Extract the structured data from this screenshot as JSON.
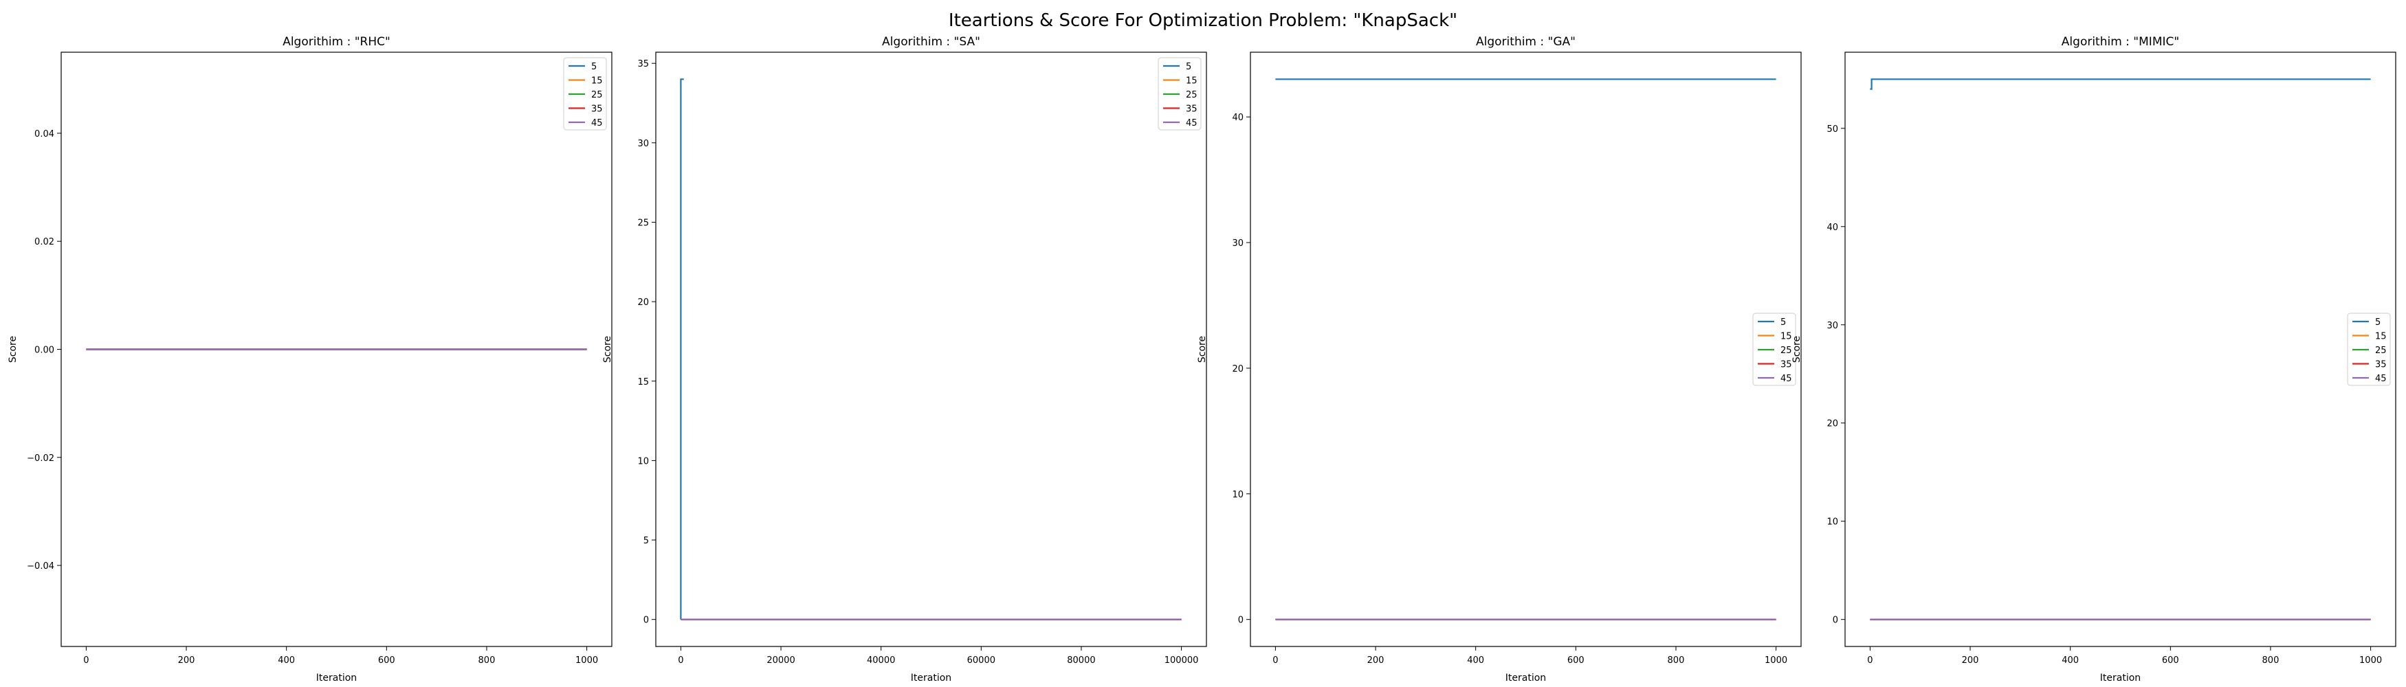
{
  "figure": {
    "title": "Iteartions & Score For Optimization Problem: \"KnapSack\""
  },
  "chart_data": [
    {
      "type": "line",
      "title": "Algorithim : \"RHC\"",
      "xlabel": "Iteration",
      "ylabel": "Score",
      "xlim": [
        -50,
        1050
      ],
      "ylim": [
        -0.055,
        0.055
      ],
      "xticks": [
        0,
        200,
        400,
        600,
        800,
        1000
      ],
      "xtick_labels": [
        "0",
        "200",
        "400",
        "600",
        "800",
        "1000"
      ],
      "yticks": [
        -0.04,
        -0.02,
        0.0,
        0.02,
        0.04
      ],
      "ytick_labels": [
        "−0.04",
        "−0.02",
        "0.00",
        "0.02",
        "0.04"
      ],
      "legend_position": "upper right",
      "grid": false,
      "series": [
        {
          "name": "5",
          "color": "#1f77b4",
          "points": [
            [
              0,
              0
            ],
            [
              1000,
              0
            ]
          ]
        },
        {
          "name": "15",
          "color": "#ff7f0e",
          "points": [
            [
              0,
              0
            ],
            [
              1000,
              0
            ]
          ]
        },
        {
          "name": "25",
          "color": "#2ca02c",
          "points": [
            [
              0,
              0
            ],
            [
              1000,
              0
            ]
          ]
        },
        {
          "name": "35",
          "color": "#d62728",
          "points": [
            [
              0,
              0
            ],
            [
              1000,
              0
            ]
          ]
        },
        {
          "name": "45",
          "color": "#9467bd",
          "points": [
            [
              0,
              0
            ],
            [
              1000,
              0
            ]
          ]
        }
      ]
    },
    {
      "type": "line",
      "title": "Algorithim : \"SA\"",
      "xlabel": "Iteration",
      "ylabel": "Score",
      "xlim": [
        -5000,
        105000
      ],
      "ylim": [
        -1.7,
        35.7
      ],
      "xticks": [
        0,
        20000,
        40000,
        60000,
        80000,
        100000
      ],
      "xtick_labels": [
        "0",
        "20000",
        "40000",
        "60000",
        "80000",
        "100000"
      ],
      "yticks": [
        0,
        5,
        10,
        15,
        20,
        25,
        30,
        35
      ],
      "ytick_labels": [
        "0",
        "5",
        "10",
        "15",
        "20",
        "25",
        "30",
        "35"
      ],
      "legend_position": "upper right",
      "grid": false,
      "series": [
        {
          "name": "5",
          "color": "#1f77b4",
          "points": [
            [
              0,
              0
            ],
            [
              0,
              34
            ],
            [
              600,
              34
            ]
          ]
        },
        {
          "name": "15",
          "color": "#ff7f0e",
          "points": [
            [
              0,
              0
            ],
            [
              100000,
              0
            ]
          ]
        },
        {
          "name": "25",
          "color": "#2ca02c",
          "points": [
            [
              0,
              0
            ],
            [
              100000,
              0
            ]
          ]
        },
        {
          "name": "35",
          "color": "#d62728",
          "points": [
            [
              0,
              0
            ],
            [
              100000,
              0
            ]
          ]
        },
        {
          "name": "45",
          "color": "#9467bd",
          "points": [
            [
              0,
              0
            ],
            [
              100000,
              0
            ]
          ]
        }
      ]
    },
    {
      "type": "line",
      "title": "Algorithim : \"GA\"",
      "xlabel": "Iteration",
      "ylabel": "Score",
      "xlim": [
        -50,
        1050
      ],
      "ylim": [
        -2.15,
        45.15
      ],
      "xticks": [
        0,
        200,
        400,
        600,
        800,
        1000
      ],
      "xtick_labels": [
        "0",
        "200",
        "400",
        "600",
        "800",
        "1000"
      ],
      "yticks": [
        0,
        10,
        20,
        30,
        40
      ],
      "ytick_labels": [
        "0",
        "10",
        "20",
        "30",
        "40"
      ],
      "legend_position": "center right",
      "grid": false,
      "series": [
        {
          "name": "5",
          "color": "#1f77b4",
          "points": [
            [
              0,
              43
            ],
            [
              1000,
              43
            ]
          ]
        },
        {
          "name": "15",
          "color": "#ff7f0e",
          "points": [
            [
              0,
              0
            ],
            [
              1000,
              0
            ]
          ]
        },
        {
          "name": "25",
          "color": "#2ca02c",
          "points": [
            [
              0,
              0
            ],
            [
              1000,
              0
            ]
          ]
        },
        {
          "name": "35",
          "color": "#d62728",
          "points": [
            [
              0,
              0
            ],
            [
              1000,
              0
            ]
          ]
        },
        {
          "name": "45",
          "color": "#9467bd",
          "points": [
            [
              0,
              0
            ],
            [
              1000,
              0
            ]
          ]
        }
      ]
    },
    {
      "type": "line",
      "title": "Algorithim : \"MIMIC\"",
      "xlabel": "Iteration",
      "ylabel": "Score",
      "xlim": [
        -50,
        1050
      ],
      "ylim": [
        -2.75,
        57.75
      ],
      "xticks": [
        0,
        200,
        400,
        600,
        800,
        1000
      ],
      "xtick_labels": [
        "0",
        "200",
        "400",
        "600",
        "800",
        "1000"
      ],
      "yticks": [
        0,
        10,
        20,
        30,
        40,
        50
      ],
      "ytick_labels": [
        "0",
        "10",
        "20",
        "30",
        "40",
        "50"
      ],
      "legend_position": "center right",
      "grid": false,
      "series": [
        {
          "name": "5",
          "color": "#1f77b4",
          "points": [
            [
              0,
              54
            ],
            [
              3,
              54
            ],
            [
              3,
              55
            ],
            [
              1000,
              55
            ]
          ]
        },
        {
          "name": "15",
          "color": "#ff7f0e",
          "points": [
            [
              0,
              0
            ],
            [
              1000,
              0
            ]
          ]
        },
        {
          "name": "25",
          "color": "#2ca02c",
          "points": [
            [
              0,
              0
            ],
            [
              1000,
              0
            ]
          ]
        },
        {
          "name": "35",
          "color": "#d62728",
          "points": [
            [
              0,
              0
            ],
            [
              1000,
              0
            ]
          ]
        },
        {
          "name": "45",
          "color": "#9467bd",
          "points": [
            [
              0,
              0
            ],
            [
              1000,
              0
            ]
          ]
        }
      ]
    }
  ]
}
